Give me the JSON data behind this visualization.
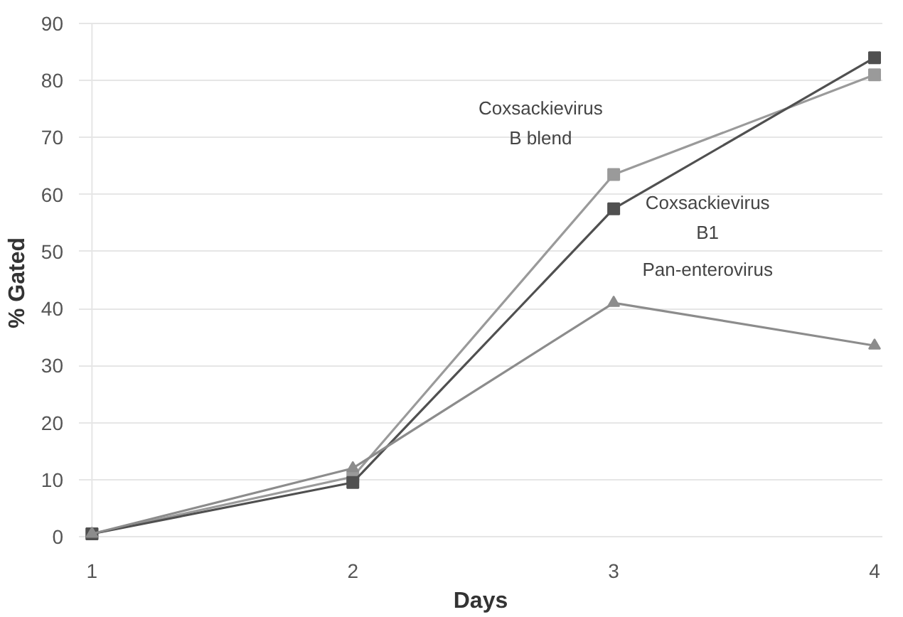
{
  "chart_data": {
    "type": "line",
    "xlabel": "Days",
    "ylabel": "% Gated",
    "x": [
      1,
      2,
      3,
      4
    ],
    "series": [
      {
        "name": "Coxsackievirus B blend",
        "color": "#9a9a9a",
        "marker": "square",
        "values": [
          0.5,
          10.5,
          63.5,
          81
        ]
      },
      {
        "name": "Coxsackievirus B1",
        "color": "#505050",
        "marker": "square",
        "values": [
          0.5,
          9.5,
          57.5,
          84
        ]
      },
      {
        "name": "Pan-enterovirus",
        "color": "#8c8c8c",
        "marker": "triangle",
        "values": [
          0.5,
          12,
          41,
          33.5
        ]
      }
    ],
    "xlim": [
      1,
      4
    ],
    "xticks": [
      1,
      2,
      3,
      4
    ],
    "ylim": [
      0,
      90
    ],
    "yticks": [
      0,
      10,
      20,
      30,
      40,
      50,
      60,
      70,
      80,
      90
    ],
    "grid": "y",
    "legend": false
  }
}
